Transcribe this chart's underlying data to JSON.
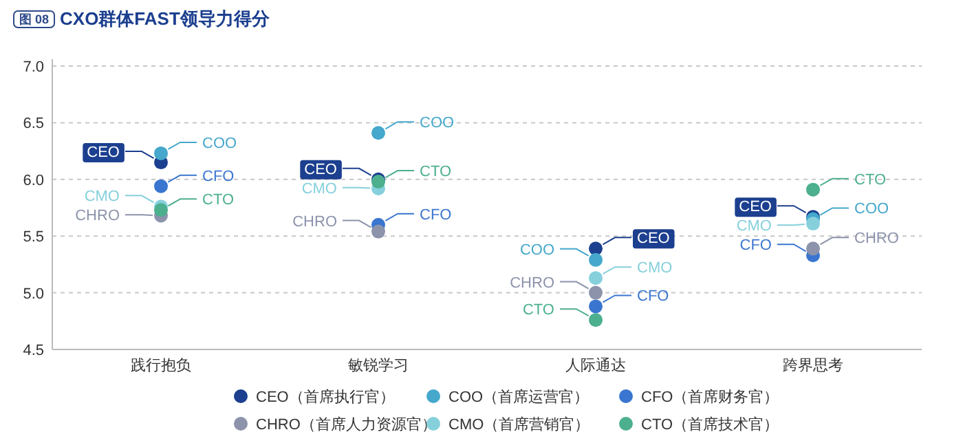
{
  "chart_data": {
    "type": "scatter",
    "title": "CXO群体FAST领导力得分",
    "annotations": [
      "图 08"
    ],
    "categories": [
      "践行抱负",
      "敏锐学习",
      "人际通达",
      "跨界思考"
    ],
    "ylim": [
      4.5,
      7.0
    ],
    "yticks": [
      4.5,
      {
        "value": 5,
        "label": "5.0"
      },
      5.5,
      {
        "value": 6,
        "label": "6.0"
      },
      6.5,
      {
        "value": 7,
        "label": "7.0"
      }
    ],
    "grid": "y",
    "legend": "bottom",
    "marker": "circle",
    "series": [
      {
        "name": "CEO（首席执行官）",
        "color": "#1c3f8f",
        "values": [
          6.15,
          6.0,
          5.39,
          5.67
        ],
        "value_labels": [
          "CEO",
          "CEO",
          "CEO",
          "CEO"
        ]
      },
      {
        "name": "COO（首席运营官）",
        "color": "#45a8cc",
        "values": [
          6.23,
          6.41,
          5.29,
          5.65
        ],
        "value_labels": [
          "COO",
          "COO",
          "COO",
          "COO"
        ]
      },
      {
        "name": "CFO（首席财务官）",
        "color": "#3a76d0",
        "values": [
          5.94,
          5.6,
          4.88,
          5.33
        ],
        "value_labels": [
          "CFO",
          "CFO",
          "CFO",
          "CFO"
        ]
      },
      {
        "name": "CHRO（首席人力资源官）",
        "color": "#8c93ab",
        "values": [
          5.68,
          5.54,
          5.0,
          5.39
        ],
        "value_labels": [
          "CHRO",
          "CHRO",
          "CHRO",
          "CHRO"
        ]
      },
      {
        "name": "CMO（首席营销官）",
        "color": "#86d0dc",
        "values": [
          5.76,
          5.92,
          5.13,
          5.61
        ],
        "value_labels": [
          "CMO",
          "CMO",
          "CMO",
          "CMO"
        ]
      },
      {
        "name": "CTO（首席技术官）",
        "color": "#4caf8e",
        "values": [
          5.73,
          5.98,
          4.76,
          5.91
        ],
        "value_labels": [
          "CTO",
          "CTO",
          "CTO",
          "CTO"
        ]
      }
    ]
  }
}
